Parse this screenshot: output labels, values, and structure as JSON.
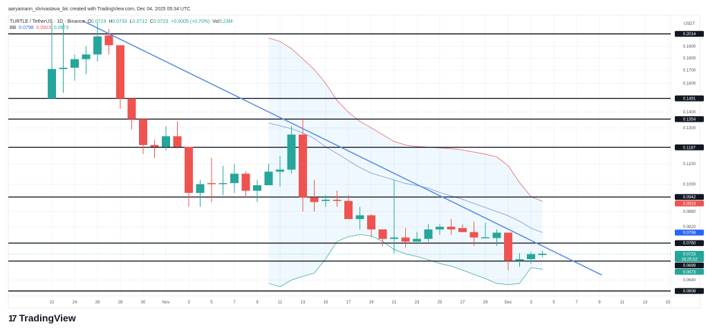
{
  "credit": "aaryamann_shrivastava_bic created with TradingView.com, Dec 04, 2025 05:34 UTC",
  "symbol": {
    "title": "TURTLE / TetherUS · 1D · Binance",
    "o_label": "O",
    "o": "0.0719",
    "h_label": "H",
    "h": "0.0733",
    "l_label": "L",
    "l": "0.0712",
    "c_label": "C",
    "c": "0.0723",
    "change": "+0.0005 (+0.70%)",
    "vol_label": "Vol",
    "vol": "3.23M"
  },
  "bb": {
    "label": "BB",
    "middle": "0.0798",
    "upper": "0.0923",
    "lower": "0.0673"
  },
  "currency": "USDT",
  "logo_text": "TradingView",
  "colors": {
    "up": "#26a69a",
    "down": "#ef5350",
    "trend": "#5b8ee6",
    "bb_upper": "#e57373",
    "bb_middle": "#7e9fe0",
    "bb_lower": "#4db6ac",
    "level": "#131722"
  },
  "chart_data": {
    "type": "candlestick",
    "title": "TURTLE / TetherUS 1D Binance",
    "yscale": "log",
    "ylim": [
      0.0595,
      0.218
    ],
    "x_start": "Oct 22",
    "x_ticks": [
      {
        "day": 0,
        "label": "22"
      },
      {
        "day": 2,
        "label": "24"
      },
      {
        "day": 4,
        "label": "26"
      },
      {
        "day": 6,
        "label": "28"
      },
      {
        "day": 8,
        "label": "30"
      },
      {
        "day": 10,
        "label": "Nov"
      },
      {
        "day": 12,
        "label": "3"
      },
      {
        "day": 14,
        "label": "5"
      },
      {
        "day": 16,
        "label": "7"
      },
      {
        "day": 18,
        "label": "9"
      },
      {
        "day": 20,
        "label": "11"
      },
      {
        "day": 22,
        "label": "13"
      },
      {
        "day": 24,
        "label": "15"
      },
      {
        "day": 26,
        "label": "17"
      },
      {
        "day": 28,
        "label": "19"
      },
      {
        "day": 30,
        "label": "21"
      },
      {
        "day": 32,
        "label": "23"
      },
      {
        "day": 34,
        "label": "25"
      },
      {
        "day": 36,
        "label": "27"
      },
      {
        "day": 38,
        "label": "29"
      },
      {
        "day": 40,
        "label": "Dec"
      },
      {
        "day": 42,
        "label": "3"
      },
      {
        "day": 44,
        "label": "5"
      },
      {
        "day": 46,
        "label": "7"
      },
      {
        "day": 48,
        "label": "9"
      },
      {
        "day": 50,
        "label": "11"
      },
      {
        "day": 52,
        "label": "13"
      },
      {
        "day": 54,
        "label": "15"
      }
    ],
    "y_ticks": [
      "0.1900",
      "0.1800",
      "0.1700",
      "0.1600",
      "0.1400",
      "0.1300",
      "0.1100",
      "0.1000",
      "0.0880",
      "0.0820",
      "0.0640"
    ],
    "candles": [
      [
        0.149,
        0.212,
        0.149,
        0.171
      ],
      [
        0.171,
        0.212,
        0.153,
        0.172
      ],
      [
        0.172,
        0.183,
        0.162,
        0.179
      ],
      [
        0.179,
        0.19,
        0.167,
        0.183
      ],
      [
        0.183,
        0.212,
        0.177,
        0.199
      ],
      [
        0.2,
        0.206,
        0.183,
        0.191
      ],
      [
        0.191,
        0.191,
        0.142,
        0.149
      ],
      [
        0.149,
        0.149,
        0.129,
        0.1354
      ],
      [
        0.1354,
        0.1354,
        0.115,
        0.12
      ],
      [
        0.12,
        0.123,
        0.113,
        0.119
      ],
      [
        0.119,
        0.131,
        0.117,
        0.125
      ],
      [
        0.125,
        0.134,
        0.118,
        0.119
      ],
      [
        0.119,
        0.119,
        0.09,
        0.096
      ],
      [
        0.096,
        0.102,
        0.09,
        0.1
      ],
      [
        0.1005,
        0.113,
        0.092,
        0.1
      ],
      [
        0.1,
        0.109,
        0.095,
        0.1005
      ],
      [
        0.1005,
        0.11,
        0.096,
        0.105
      ],
      [
        0.105,
        0.106,
        0.094,
        0.097
      ],
      [
        0.097,
        0.102,
        0.092,
        0.0995
      ],
      [
        0.0995,
        0.11,
        0.0995,
        0.106
      ],
      [
        0.106,
        0.114,
        0.099,
        0.107
      ],
      [
        0.107,
        0.131,
        0.105,
        0.126
      ],
      [
        0.126,
        0.1354,
        0.088,
        0.094
      ],
      [
        0.094,
        0.102,
        0.088,
        0.092
      ],
      [
        0.0925,
        0.095,
        0.09,
        0.093
      ],
      [
        0.093,
        0.097,
        0.09,
        0.0925
      ],
      [
        0.0925,
        0.095,
        0.085,
        0.085
      ],
      [
        0.085,
        0.09,
        0.081,
        0.0865
      ],
      [
        0.0865,
        0.087,
        0.078,
        0.081
      ],
      [
        0.081,
        0.081,
        0.075,
        0.0775
      ],
      [
        0.0775,
        0.102,
        0.0725,
        0.078
      ],
      [
        0.078,
        0.0815,
        0.0745,
        0.0765
      ],
      [
        0.0765,
        0.08,
        0.0765,
        0.0775
      ],
      [
        0.0775,
        0.083,
        0.0765,
        0.081
      ],
      [
        0.081,
        0.083,
        0.079,
        0.082
      ],
      [
        0.082,
        0.085,
        0.079,
        0.081
      ],
      [
        0.0815,
        0.083,
        0.08,
        0.08
      ],
      [
        0.08,
        0.084,
        0.075,
        0.078
      ],
      [
        0.078,
        0.0835,
        0.078,
        0.0781
      ],
      [
        0.0778,
        0.081,
        0.075,
        0.0798
      ],
      [
        0.0798,
        0.0798,
        0.067,
        0.07
      ],
      [
        0.07,
        0.0725,
        0.068,
        0.0705
      ],
      [
        0.0705,
        0.073,
        0.069,
        0.0722
      ],
      [
        0.0719,
        0.0733,
        0.0712,
        0.0723
      ]
    ],
    "candle_format": "open,high,low,close",
    "bollinger": {
      "start_day": 19,
      "upper": [
        0.1976,
        0.1944,
        0.1881,
        0.1792,
        0.1707,
        0.16,
        0.1476,
        0.1398,
        0.134,
        0.13,
        0.1259,
        0.122,
        0.12,
        0.1192,
        0.1188,
        0.1184,
        0.118,
        0.1173,
        0.1161,
        0.115,
        0.1135,
        0.109,
        0.1007,
        0.0944,
        0.0923
      ],
      "middle": [
        0.1329,
        0.1312,
        0.1295,
        0.127,
        0.1238,
        0.119,
        0.1153,
        0.1116,
        0.1081,
        0.1053,
        0.1036,
        0.102,
        0.1003,
        0.0994,
        0.0981,
        0.0962,
        0.0947,
        0.0932,
        0.0914,
        0.0897,
        0.088,
        0.0863,
        0.0841,
        0.0815,
        0.0798
      ],
      "lower": [
        0.063,
        0.062,
        0.064,
        0.0651,
        0.0661,
        0.0706,
        0.0766,
        0.0783,
        0.0791,
        0.0786,
        0.0766,
        0.0737,
        0.0723,
        0.0714,
        0.0703,
        0.0691,
        0.0683,
        0.067,
        0.0657,
        0.0644,
        0.063,
        0.0626,
        0.063,
        0.0678,
        0.0673
      ]
    },
    "trendline": [
      [
        2.7,
        0.214
      ],
      [
        48.2,
        0.0655
      ]
    ],
    "levels": [
      "0.2014",
      "0.1491",
      "0.1354",
      "0.1187",
      "0.0942",
      "0.0760",
      "0.0699",
      "0.0608"
    ],
    "badges": [
      {
        "value": "0.0923",
        "color": "#ef5350"
      },
      {
        "value": "0.0798",
        "color": "#2962ff"
      },
      {
        "value": "0.0723",
        "sub": "18:25:52",
        "color": "#26a69a"
      },
      {
        "value": "0.0673",
        "color": "#26a69a"
      }
    ]
  }
}
